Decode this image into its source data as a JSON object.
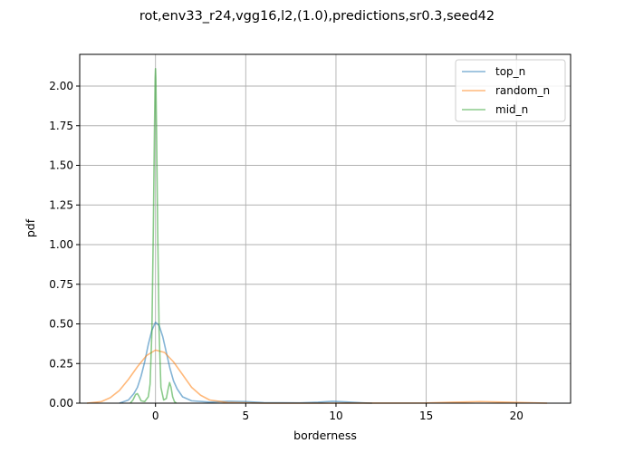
{
  "chart_data": {
    "type": "line",
    "title": "rot,env33_r24,vgg16,l2,(1.0),predictions,sr0.3,seed42",
    "xlabel": "borderness",
    "ylabel": "pdf",
    "xlim": [
      -4.2,
      23.0
    ],
    "ylim": [
      0.0,
      2.2
    ],
    "grid": true,
    "legend_position": "top-right",
    "x_ticks": [
      0,
      5,
      10,
      15,
      20
    ],
    "x_tick_labels": [
      "0",
      "5",
      "10",
      "15",
      "20"
    ],
    "y_ticks": [
      0.0,
      0.25,
      0.5,
      0.75,
      1.0,
      1.25,
      1.5,
      1.75,
      2.0
    ],
    "y_tick_labels": [
      "0.00",
      "0.25",
      "0.50",
      "0.75",
      "1.00",
      "1.25",
      "1.50",
      "1.75",
      "2.00"
    ],
    "series": [
      {
        "name": "top_n",
        "color": "#1f77b4",
        "points": [
          [
            -2.0,
            0.0
          ],
          [
            -1.5,
            0.02
          ],
          [
            -1.2,
            0.06
          ],
          [
            -1.0,
            0.1
          ],
          [
            -0.8,
            0.17
          ],
          [
            -0.6,
            0.26
          ],
          [
            -0.4,
            0.37
          ],
          [
            -0.2,
            0.46
          ],
          [
            0.0,
            0.51
          ],
          [
            0.2,
            0.49
          ],
          [
            0.4,
            0.42
          ],
          [
            0.6,
            0.32
          ],
          [
            0.8,
            0.22
          ],
          [
            1.0,
            0.14
          ],
          [
            1.2,
            0.09
          ],
          [
            1.5,
            0.04
          ],
          [
            2.0,
            0.015
          ],
          [
            3.0,
            0.007
          ],
          [
            4.0,
            0.012
          ],
          [
            5.0,
            0.01
          ],
          [
            6.0,
            0.003
          ],
          [
            8.0,
            0.002
          ],
          [
            9.0,
            0.006
          ],
          [
            9.8,
            0.012
          ],
          [
            10.5,
            0.008
          ],
          [
            11.5,
            0.002
          ],
          [
            12.0,
            0.0
          ]
        ]
      },
      {
        "name": "random_n",
        "color": "#ff7f0e",
        "points": [
          [
            -3.8,
            0.0
          ],
          [
            -3.0,
            0.01
          ],
          [
            -2.5,
            0.035
          ],
          [
            -2.0,
            0.08
          ],
          [
            -1.5,
            0.15
          ],
          [
            -1.0,
            0.23
          ],
          [
            -0.5,
            0.3
          ],
          [
            0.0,
            0.335
          ],
          [
            0.5,
            0.32
          ],
          [
            1.0,
            0.26
          ],
          [
            1.5,
            0.18
          ],
          [
            2.0,
            0.1
          ],
          [
            2.5,
            0.05
          ],
          [
            3.0,
            0.02
          ],
          [
            4.0,
            0.004
          ],
          [
            6.0,
            0.0
          ],
          [
            10.0,
            0.0
          ],
          [
            15.0,
            0.001
          ],
          [
            16.5,
            0.006
          ],
          [
            18.0,
            0.01
          ],
          [
            19.5,
            0.006
          ],
          [
            21.0,
            0.002
          ],
          [
            21.7,
            0.0
          ]
        ]
      },
      {
        "name": "mid_n",
        "color": "#2ca02c",
        "points": [
          [
            -1.4,
            0.0
          ],
          [
            -1.25,
            0.02
          ],
          [
            -1.1,
            0.055
          ],
          [
            -1.0,
            0.06
          ],
          [
            -0.9,
            0.04
          ],
          [
            -0.8,
            0.015
          ],
          [
            -0.6,
            0.01
          ],
          [
            -0.4,
            0.04
          ],
          [
            -0.3,
            0.12
          ],
          [
            -0.2,
            0.45
          ],
          [
            -0.12,
            1.1
          ],
          [
            -0.06,
            1.7
          ],
          [
            -0.02,
            2.05
          ],
          [
            0.0,
            2.11
          ],
          [
            0.02,
            2.05
          ],
          [
            0.06,
            1.7
          ],
          [
            0.12,
            1.1
          ],
          [
            0.2,
            0.45
          ],
          [
            0.3,
            0.1
          ],
          [
            0.45,
            0.02
          ],
          [
            0.6,
            0.03
          ],
          [
            0.7,
            0.09
          ],
          [
            0.78,
            0.13
          ],
          [
            0.86,
            0.1
          ],
          [
            0.95,
            0.04
          ],
          [
            1.05,
            0.01
          ],
          [
            1.15,
            0.0
          ]
        ]
      }
    ]
  }
}
